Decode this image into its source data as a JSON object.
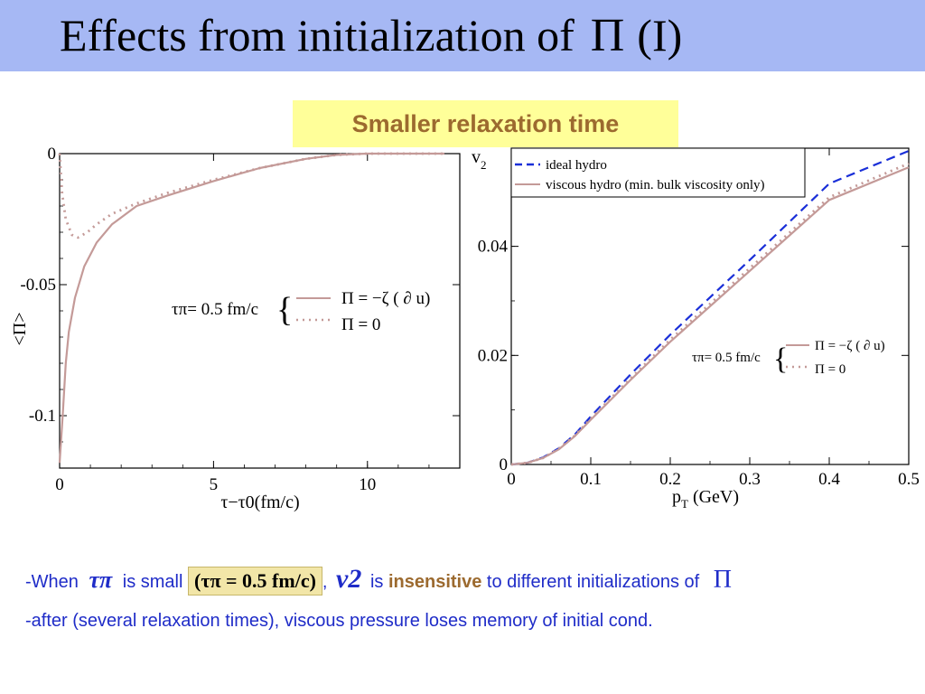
{
  "title": {
    "text": "Effects from initialization of",
    "symbol": "Π",
    "suffix": "(I)"
  },
  "callout": "Smaller relaxation time",
  "chart_data": [
    {
      "type": "line",
      "ylabel": "<Π>",
      "xlabel": "τ−τ0(fm/c)",
      "xlim": [
        0,
        13
      ],
      "ylim": [
        -0.12,
        0
      ],
      "x_ticks": [
        "0",
        "5",
        "10"
      ],
      "y_ticks": [
        "0",
        "-0.05",
        "-0.1"
      ],
      "annotation": {
        "param": "τπ= 0.5 fm/c",
        "legend_solid": "Π = −ζ ( ∂ u)",
        "legend_dotted": "Π = 0"
      },
      "series": [
        {
          "name": "Π = −ζ ( ∂ u)",
          "color": "#c49a98",
          "style": "solid",
          "x": [
            0,
            0.1,
            0.2,
            0.3,
            0.5,
            0.8,
            1.2,
            1.7,
            2.5,
            3.5,
            5,
            6.5,
            8,
            9,
            10,
            11,
            12.5
          ],
          "y": [
            -0.118,
            -0.1,
            -0.08,
            -0.068,
            -0.055,
            -0.043,
            -0.034,
            -0.027,
            -0.02,
            -0.016,
            -0.0105,
            -0.0055,
            -0.002,
            -0.0005,
            0,
            0,
            0
          ]
        },
        {
          "name": "Π = 0",
          "color": "#c49a98",
          "style": "dotted",
          "x": [
            0,
            0.08,
            0.2,
            0.4,
            0.6,
            0.9,
            1.2,
            1.7,
            2.5,
            3.5,
            5,
            6.5,
            8,
            9,
            10,
            11,
            12.5
          ],
          "y": [
            0,
            -0.015,
            -0.025,
            -0.031,
            -0.032,
            -0.03,
            -0.027,
            -0.023,
            -0.019,
            -0.015,
            -0.01,
            -0.0055,
            -0.002,
            -0.0005,
            0,
            0,
            0
          ]
        }
      ]
    },
    {
      "type": "line",
      "ylabel": "v2",
      "xlabel": "pT (GeV)",
      "xlim": [
        0,
        0.5
      ],
      "ylim": [
        0,
        0.058
      ],
      "x_ticks": [
        "0",
        "0.1",
        "0.2",
        "0.3",
        "0.4",
        "0.5"
      ],
      "y_ticks": [
        "0",
        "0.02",
        "0.04"
      ],
      "legend": [
        "ideal hydro",
        "viscous hydro (min. bulk viscosity only)"
      ],
      "annotation": {
        "param": "τπ= 0.5 fm/c",
        "legend_solid": "Π = −ζ ( ∂ u)",
        "legend_dotted": "Π = 0"
      },
      "series": [
        {
          "name": "ideal hydro",
          "color": "#1a2fd8",
          "style": "dashed",
          "x": [
            0,
            0.02,
            0.04,
            0.06,
            0.08,
            0.1,
            0.15,
            0.2,
            0.3,
            0.4,
            0.5
          ],
          "y": [
            0,
            0.0003,
            0.0013,
            0.003,
            0.0055,
            0.0088,
            0.0165,
            0.0238,
            0.0375,
            0.0515,
            0.0575
          ]
        },
        {
          "name": "viscous hydro (min. bulk viscosity only)",
          "color": "#c49a98",
          "style": "solid",
          "x": [
            0,
            0.02,
            0.04,
            0.06,
            0.08,
            0.1,
            0.15,
            0.2,
            0.3,
            0.4,
            0.5
          ],
          "y": [
            0,
            0.0003,
            0.0012,
            0.0028,
            0.0052,
            0.0082,
            0.0155,
            0.0225,
            0.0355,
            0.0485,
            0.0545
          ]
        },
        {
          "name": "Π = 0",
          "color": "#c49a98",
          "style": "dotted",
          "x": [
            0,
            0.02,
            0.04,
            0.06,
            0.08,
            0.1,
            0.15,
            0.2,
            0.3,
            0.4,
            0.5
          ],
          "y": [
            0,
            0.0003,
            0.0012,
            0.0029,
            0.0053,
            0.0084,
            0.0158,
            0.0229,
            0.036,
            0.049,
            0.0552
          ]
        }
      ]
    }
  ],
  "footer": {
    "line1_when": "-When",
    "tau_symbol": "τπ",
    "is_small": "is small",
    "highlight": "(τπ = 0.5  fm/c)",
    "comma": ",",
    "v2": "v2",
    "is": "is",
    "insensitive": "insensitive",
    "rest": "to different initializations of",
    "pi": "Π",
    "line2": "-after (several relaxation times), viscous pressure loses memory of initial cond."
  },
  "colors": {
    "title_bar": "#a6b8f4",
    "callout_bg": "#ffff99",
    "callout_text": "#9c6a2f",
    "footer_text": "#1f2cc8",
    "viscous": "#c49a98",
    "ideal": "#1a2fd8"
  }
}
